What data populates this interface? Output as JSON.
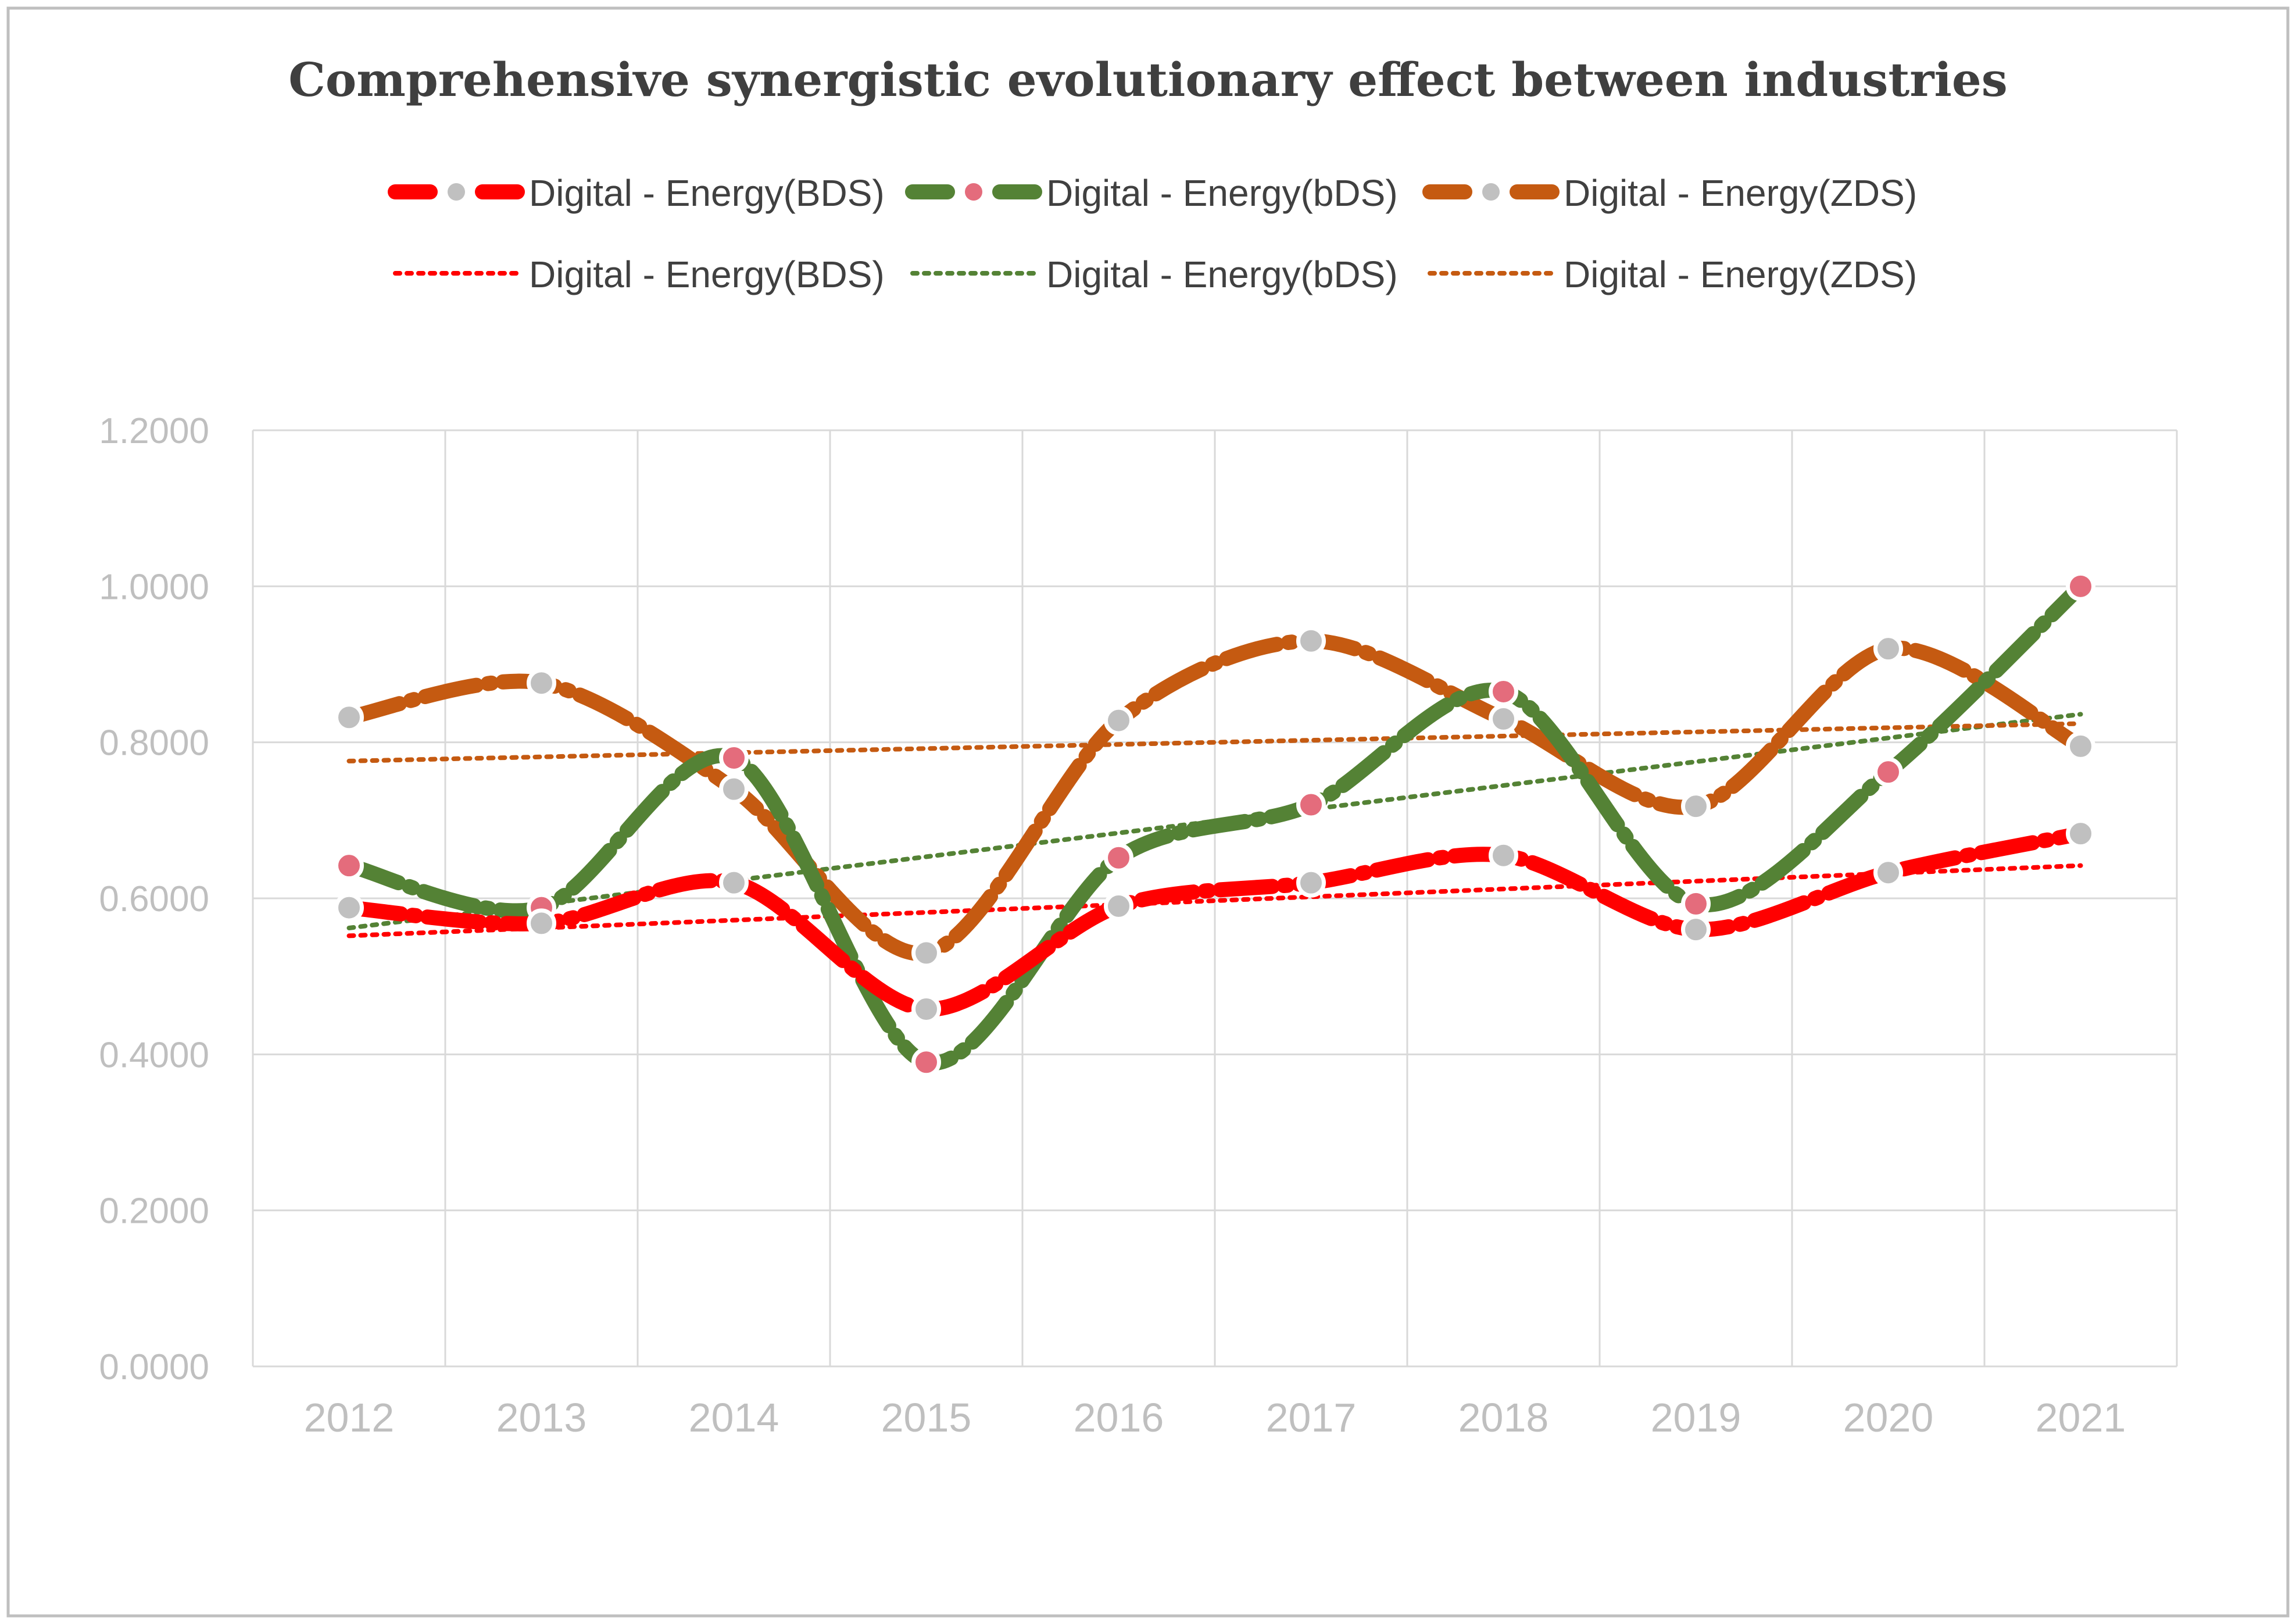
{
  "chart_data": {
    "type": "line",
    "title": "Comprehensive synergistic evolutionary effect between industries",
    "xlabel": "",
    "ylabel": "",
    "categories": [
      "2012",
      "2013",
      "2014",
      "2015",
      "2016",
      "2017",
      "2018",
      "2019",
      "2020",
      "2021"
    ],
    "ylim": [
      0,
      1.2
    ],
    "yticks": [
      "0.0000",
      "0.2000",
      "0.4000",
      "0.6000",
      "0.8000",
      "1.0000",
      "1.2000"
    ],
    "grid": true,
    "legend_position": "top",
    "series": [
      {
        "name": "Digital - Energy(BDS)",
        "color": "#ff0000",
        "marker_color": "#c0c0c0",
        "style": "dash",
        "values": [
          0.588,
          0.568,
          0.62,
          0.458,
          0.59,
          0.62,
          0.655,
          0.56,
          0.633,
          0.683
        ]
      },
      {
        "name": "Digital - Energy(bDS)",
        "color": "#548235",
        "marker_color": "#e46c7c",
        "style": "dash",
        "values": [
          0.642,
          0.588,
          0.78,
          0.39,
          0.652,
          0.72,
          0.865,
          0.593,
          0.762,
          1.0
        ]
      },
      {
        "name": "Digital - Energy(ZDS)",
        "color": "#c55a11",
        "marker_color": "#c0c0c0",
        "style": "dash",
        "values": [
          0.832,
          0.876,
          0.74,
          0.53,
          0.828,
          0.93,
          0.83,
          0.718,
          0.92,
          0.795
        ]
      }
    ],
    "trendlines": [
      {
        "name": "Digital - Energy(BDS)",
        "color": "#ff0000",
        "style": "dotted",
        "start": 0.552,
        "end": 0.642
      },
      {
        "name": "Digital - Energy(bDS)",
        "color": "#548235",
        "style": "dotted",
        "start": 0.562,
        "end": 0.836
      },
      {
        "name": "Digital - Energy(ZDS)",
        "color": "#c55a11",
        "style": "dotted",
        "start": 0.776,
        "end": 0.824
      }
    ]
  }
}
